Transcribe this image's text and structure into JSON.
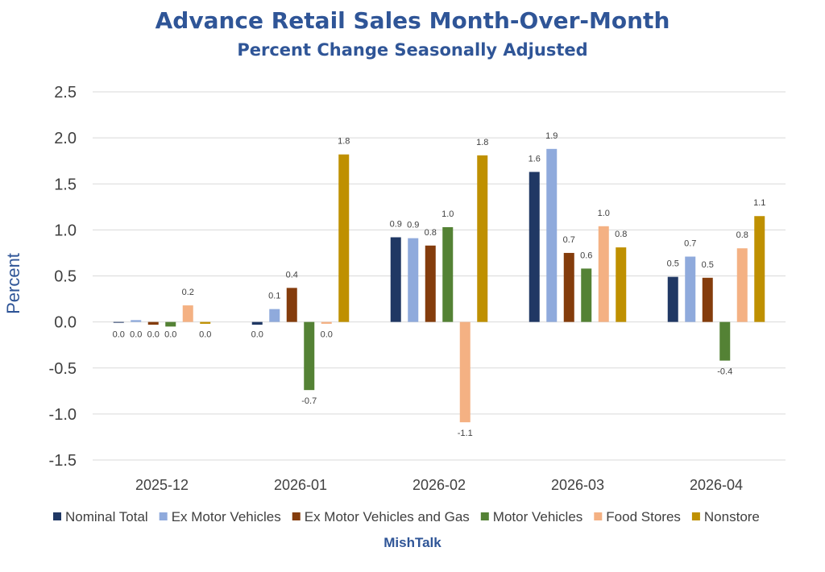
{
  "chart_data": {
    "type": "bar",
    "title": "Advance Retail Sales Month-Over-Month",
    "subtitle": "Percent Change Seasonally Adjusted",
    "ylabel": "Percent",
    "xlabel": "",
    "footer": "MishTalk",
    "ylim": [
      -1.5,
      2.5
    ],
    "yticks": [
      "2.5",
      "2.0",
      "1.5",
      "1.0",
      "0.5",
      "0.0",
      "-0.5",
      "-1.0",
      "-1.5"
    ],
    "grid": true,
    "legend_position": "bottom",
    "categories": [
      "2025-12",
      "2026-01",
      "2026-02",
      "2026-03",
      "2026-04"
    ],
    "series": [
      {
        "name": "Nominal Total",
        "color": "#203864",
        "values": [
          0.0,
          -0.03,
          0.92,
          1.63,
          0.49
        ],
        "labels": [
          "0.0",
          "0.0",
          "0.9",
          "1.6",
          "0.5"
        ]
      },
      {
        "name": "Ex Motor Vehicles",
        "color": "#8faadc",
        "values": [
          0.02,
          0.14,
          0.91,
          1.88,
          0.71
        ],
        "labels": [
          "0.0",
          "0.1",
          "0.9",
          "1.9",
          "0.7"
        ]
      },
      {
        "name": "Ex Motor Vehicles and Gas",
        "color": "#843c0c",
        "values": [
          -0.03,
          0.37,
          0.83,
          0.75,
          0.48
        ],
        "labels": [
          "0.0",
          "0.4",
          "0.8",
          "0.7",
          "0.5"
        ]
      },
      {
        "name": "Motor Vehicles",
        "color": "#548235",
        "values": [
          -0.05,
          -0.74,
          1.03,
          0.58,
          -0.42
        ],
        "labels": [
          "0.0",
          "-0.7",
          "1.0",
          "0.6",
          "-0.4"
        ]
      },
      {
        "name": "Food Stores",
        "color": "#f4b183",
        "values": [
          0.18,
          -0.02,
          -1.09,
          1.04,
          0.8
        ],
        "labels": [
          "0.2",
          "0.0",
          "-1.1",
          "1.0",
          "0.8"
        ]
      },
      {
        "name": "Nonstore",
        "color": "#bf9000",
        "values": [
          -0.02,
          1.82,
          1.81,
          0.81,
          1.15
        ],
        "labels": [
          "0.0",
          "1.8",
          "1.8",
          "0.8",
          "1.1"
        ]
      }
    ]
  }
}
